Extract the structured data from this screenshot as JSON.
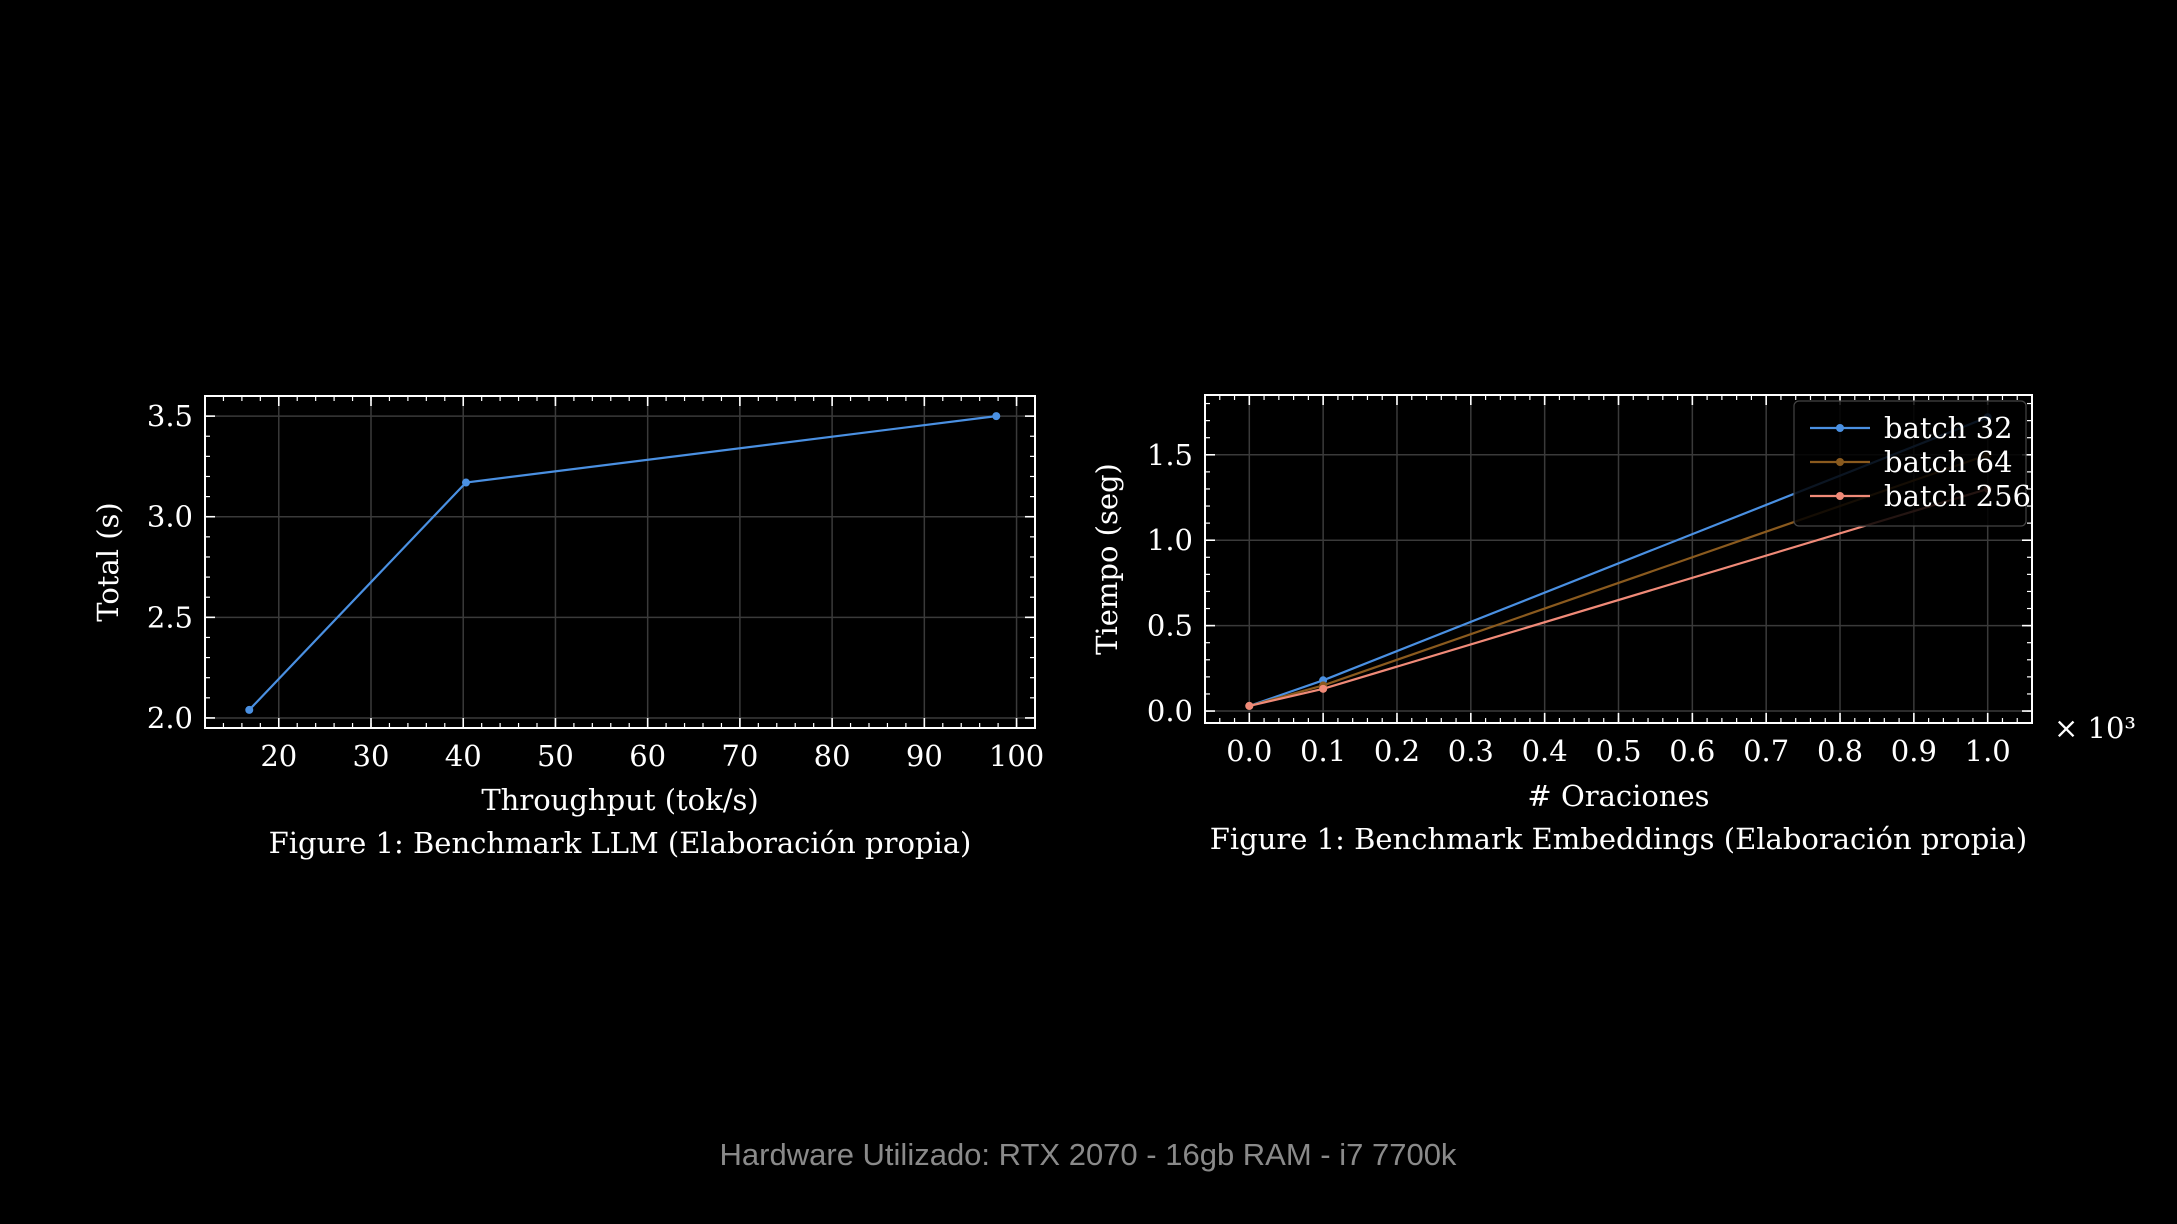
{
  "footer": "Hardware Utilizado: RTX 2070 - 16gb RAM - i7 7700k",
  "colors": {
    "background": "#000000",
    "grid": "#3a3a3a",
    "axes": "#ffffff"
  },
  "chart_data": [
    {
      "type": "line",
      "caption": "Figure 1: Benchmark LLM (Elaboración propia)",
      "xlabel": "Throughput (tok/s)",
      "ylabel": "Total (s)",
      "xlim": [
        12,
        102
      ],
      "ylim": [
        1.95,
        3.6
      ],
      "xticks": [
        20,
        30,
        40,
        50,
        60,
        70,
        80,
        90,
        100
      ],
      "yticks": [
        2.0,
        2.5,
        3.0,
        3.5
      ],
      "xtick_labels": [
        "20",
        "30",
        "40",
        "50",
        "60",
        "70",
        "80",
        "90",
        "100"
      ],
      "ytick_labels": [
        "2.0",
        "2.5",
        "3.0",
        "3.5"
      ],
      "grid": true,
      "series": [
        {
          "color": "#4a90e2",
          "x": [
            16.8,
            40.3,
            97.8
          ],
          "y": [
            2.04,
            3.17,
            3.5
          ]
        }
      ]
    },
    {
      "type": "line",
      "caption": "Figure 1: Benchmark Embeddings (Elaboración propia)",
      "xlabel": "# Oraciones",
      "ylabel": "Tiempo (seg)",
      "x_offset_label": "× 10³",
      "xlim": [
        -0.06,
        1.06
      ],
      "ylim": [
        -0.07,
        1.85
      ],
      "xticks": [
        0.0,
        0.1,
        0.2,
        0.3,
        0.4,
        0.5,
        0.6,
        0.7,
        0.8,
        0.9,
        1.0
      ],
      "yticks": [
        0.0,
        0.5,
        1.0,
        1.5
      ],
      "xtick_labels": [
        "0.0",
        "0.1",
        "0.2",
        "0.3",
        "0.4",
        "0.5",
        "0.6",
        "0.7",
        "0.8",
        "0.9",
        "1.0"
      ],
      "ytick_labels": [
        "0.0",
        "0.5",
        "1.0",
        "1.5"
      ],
      "grid": true,
      "legend_position": "top-right",
      "series": [
        {
          "name": "batch 32",
          "color": "#4a90e2",
          "x": [
            0.0,
            0.1,
            1.0
          ],
          "y": [
            0.03,
            0.18,
            1.72
          ]
        },
        {
          "name": "batch 64",
          "color": "#8a5a1e",
          "x": [
            0.0,
            0.1,
            1.0
          ],
          "y": [
            0.03,
            0.15,
            1.5
          ]
        },
        {
          "name": "batch 256",
          "color": "#f08a78",
          "x": [
            0.0,
            0.1,
            1.0
          ],
          "y": [
            0.03,
            0.13,
            1.3
          ]
        }
      ]
    }
  ]
}
